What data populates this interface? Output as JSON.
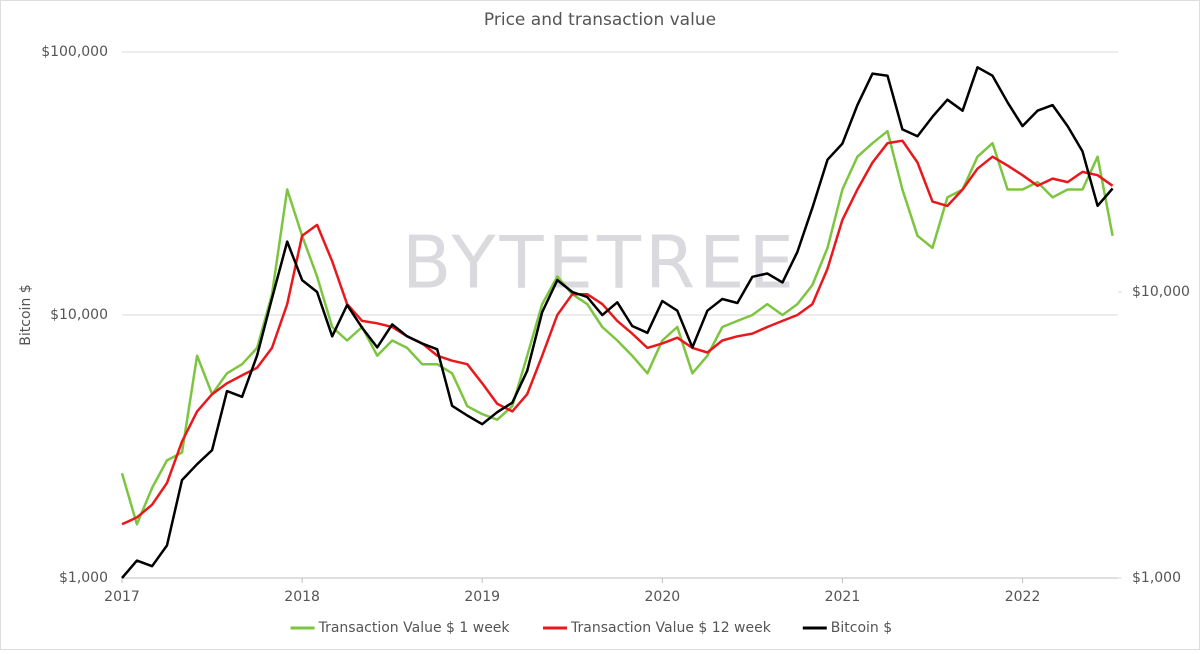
{
  "chart_data": {
    "type": "line",
    "title": "Price and transaction value",
    "y_label": "Bitcoin $",
    "watermark": "BYTETREE",
    "log_scale": true,
    "grid": true,
    "legend": "bottom",
    "x": [
      2017.0,
      2017.083,
      2017.167,
      2017.25,
      2017.333,
      2017.417,
      2017.5,
      2017.583,
      2017.667,
      2017.75,
      2017.833,
      2017.917,
      2018.0,
      2018.083,
      2018.167,
      2018.25,
      2018.333,
      2018.417,
      2018.5,
      2018.583,
      2018.667,
      2018.75,
      2018.833,
      2018.917,
      2019.0,
      2019.083,
      2019.167,
      2019.25,
      2019.333,
      2019.417,
      2019.5,
      2019.583,
      2019.667,
      2019.75,
      2019.833,
      2019.917,
      2020.0,
      2020.083,
      2020.167,
      2020.25,
      2020.333,
      2020.417,
      2020.5,
      2020.583,
      2020.667,
      2020.75,
      2020.833,
      2020.917,
      2021.0,
      2021.083,
      2021.167,
      2021.25,
      2021.333,
      2021.417,
      2021.5,
      2021.583,
      2021.667,
      2021.75,
      2021.833,
      2021.917,
      2022.0,
      2022.083,
      2022.167,
      2022.25,
      2022.333,
      2022.417,
      2022.5
    ],
    "xlim": [
      2017,
      2022.53
    ],
    "xticks": [
      2017,
      2018,
      2019,
      2020,
      2021,
      2022
    ],
    "ylim": [
      1000,
      100000
    ],
    "yticks": [
      {
        "value": 1000,
        "label": "$1,000"
      },
      {
        "value": 10000,
        "label": "$10,000"
      },
      {
        "value": 100000,
        "label": "$100,000"
      }
    ],
    "y2lim": [
      1000,
      69000
    ],
    "y2ticks": [
      {
        "value": 1000,
        "label": "$1,000"
      },
      {
        "value": 10000,
        "label": "$10,000"
      }
    ],
    "series": [
      {
        "name": "Transaction Value $ 1 week",
        "color": "#7dc540",
        "values": [
          2500,
          1600,
          2200,
          2800,
          3000,
          7000,
          5000,
          6000,
          6500,
          7500,
          12000,
          30000,
          20000,
          14000,
          9000,
          8000,
          9000,
          7000,
          8000,
          7500,
          6500,
          6500,
          6000,
          4500,
          4200,
          4000,
          4500,
          7000,
          11000,
          14000,
          12000,
          11000,
          9000,
          8000,
          7000,
          6000,
          8000,
          9000,
          6000,
          7000,
          9000,
          9500,
          10000,
          11000,
          10000,
          11000,
          13000,
          18000,
          30000,
          40000,
          45000,
          50000,
          30000,
          20000,
          18000,
          28000,
          30000,
          40000,
          45000,
          30000,
          30000,
          32000,
          28000,
          30000,
          30000,
          40000,
          20000
        ]
      },
      {
        "name": "Transaction Value $ 12 week",
        "color": "#e8191d",
        "values": [
          1600,
          1700,
          1900,
          2300,
          3300,
          4300,
          5000,
          5500,
          5900,
          6300,
          7500,
          11000,
          20000,
          22000,
          16000,
          11000,
          9500,
          9300,
          9000,
          8300,
          7800,
          7000,
          6700,
          6500,
          5500,
          4600,
          4300,
          5000,
          7000,
          10000,
          12000,
          12000,
          11000,
          9500,
          8500,
          7500,
          7800,
          8200,
          7500,
          7200,
          8000,
          8300,
          8500,
          9000,
          9500,
          10000,
          11000,
          15000,
          23000,
          30000,
          38000,
          45000,
          46000,
          38000,
          27000,
          26000,
          30000,
          36000,
          40000,
          37000,
          34000,
          31000,
          33000,
          32000,
          35000,
          34000,
          31000
        ]
      },
      {
        "name": "Bitcoin $",
        "color": "#000000",
        "axis": "y2",
        "values": [
          1000,
          1150,
          1100,
          1300,
          2200,
          2500,
          2800,
          4500,
          4300,
          6000,
          9500,
          15000,
          11000,
          10000,
          7000,
          9000,
          7500,
          6400,
          7700,
          7000,
          6600,
          6300,
          4000,
          3700,
          3450,
          3800,
          4100,
          5300,
          8500,
          11000,
          10000,
          9600,
          8300,
          9200,
          7600,
          7200,
          9300,
          8600,
          6400,
          8600,
          9450,
          9150,
          11300,
          11600,
          10800,
          13800,
          19700,
          29000,
          33000,
          45000,
          58000,
          57000,
          37000,
          35000,
          41000,
          47000,
          43000,
          61000,
          57000,
          46000,
          38000,
          43000,
          45000,
          38000,
          31000,
          20000,
          23000
        ]
      }
    ]
  }
}
